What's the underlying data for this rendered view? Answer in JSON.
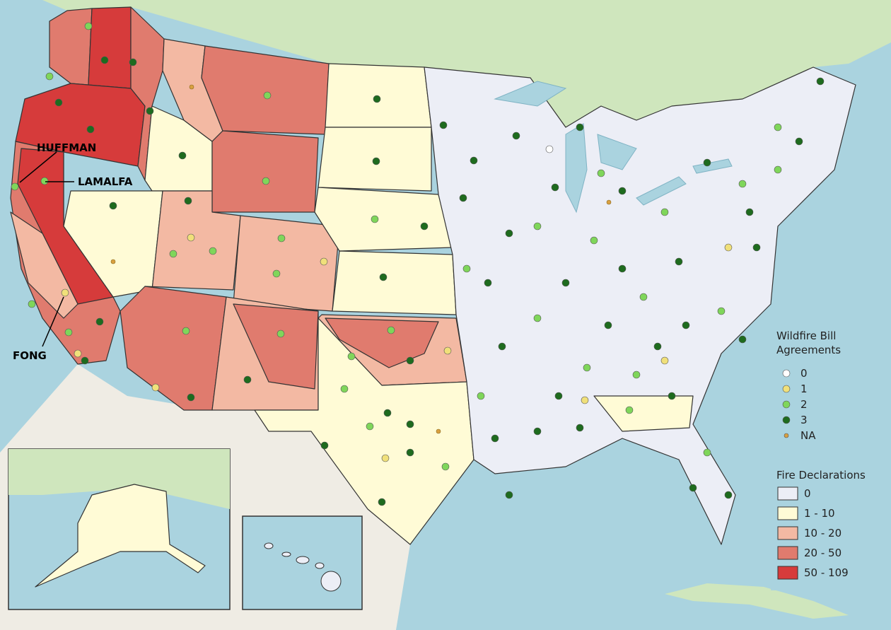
{
  "map": {
    "annotations": [
      "HUFFMAN",
      "LAMALFA",
      "FONG"
    ],
    "legends": [
      {
        "title": "Wildfire Bill Agreements",
        "items": [
          {
            "label": "0",
            "color": "#ffffff"
          },
          {
            "label": "1",
            "color": "#f0e07a"
          },
          {
            "label": "2",
            "color": "#7fd65a"
          },
          {
            "label": "3",
            "color": "#1e6b1e"
          },
          {
            "label": "NA",
            "color": "#d9a040"
          }
        ]
      },
      {
        "title": "Fire Declarations",
        "items": [
          {
            "label": "0",
            "color": "#eceef6"
          },
          {
            "label": "1 - 10",
            "color": "#fffbd6"
          },
          {
            "label": "10 - 20",
            "color": "#f3b9a3"
          },
          {
            "label": "20 - 50",
            "color": "#e07b6e"
          },
          {
            "label": "50 - 109",
            "color": "#d63b3b"
          }
        ]
      }
    ]
  }
}
